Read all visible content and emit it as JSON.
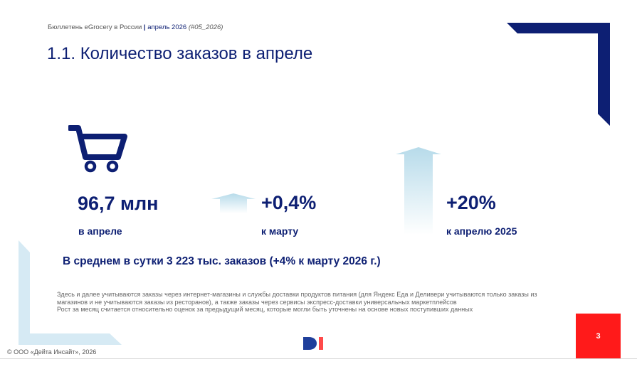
{
  "header": {
    "bulletin": "Бюллетень eGrocery в России",
    "separator": "|",
    "period": "апрель 2026",
    "issue": "(#05_2026)"
  },
  "title": "1.1. Количество заказов в апреле",
  "kpis": [
    {
      "value": "96,7 млн",
      "label": "в апреле",
      "icon": "shopping-cart-icon"
    },
    {
      "value": "+0,4%",
      "label": "к марту",
      "icon": "arrow-up-small-icon"
    },
    {
      "value": "+20%",
      "label": "к апрелю 2025",
      "icon": "arrow-up-large-icon"
    }
  ],
  "average_line": "В среднем в сутки 3 223 тыс. заказов (+4% к марту 2026 г.)",
  "notes": [
    "Здесь и далее учитываются заказы через интернет-магазины и службы доставки продуктов питания (для Яндекс Еда и Деливери учитываются только заказы из магазинов и не учитываются заказы из ресторанов), а также заказы через сервисы экспресс-доставки универсальных маркетплейсов",
    "Рост за месяц считается относительно оценок за предыдущий месяц, которые могли быть уточнены на основе новых поступивших данных"
  ],
  "footer": {
    "copyright": "© ООО «Дейта Инсайт», 2026",
    "page_number": "3",
    "logo_text": "DI"
  },
  "colors": {
    "navy": "#0d1f73",
    "light_blue": "#cfe6f1",
    "page_red": "#ff1a1a",
    "logo_blue": "#1f3f9b",
    "logo_red": "#ff4a4a"
  }
}
